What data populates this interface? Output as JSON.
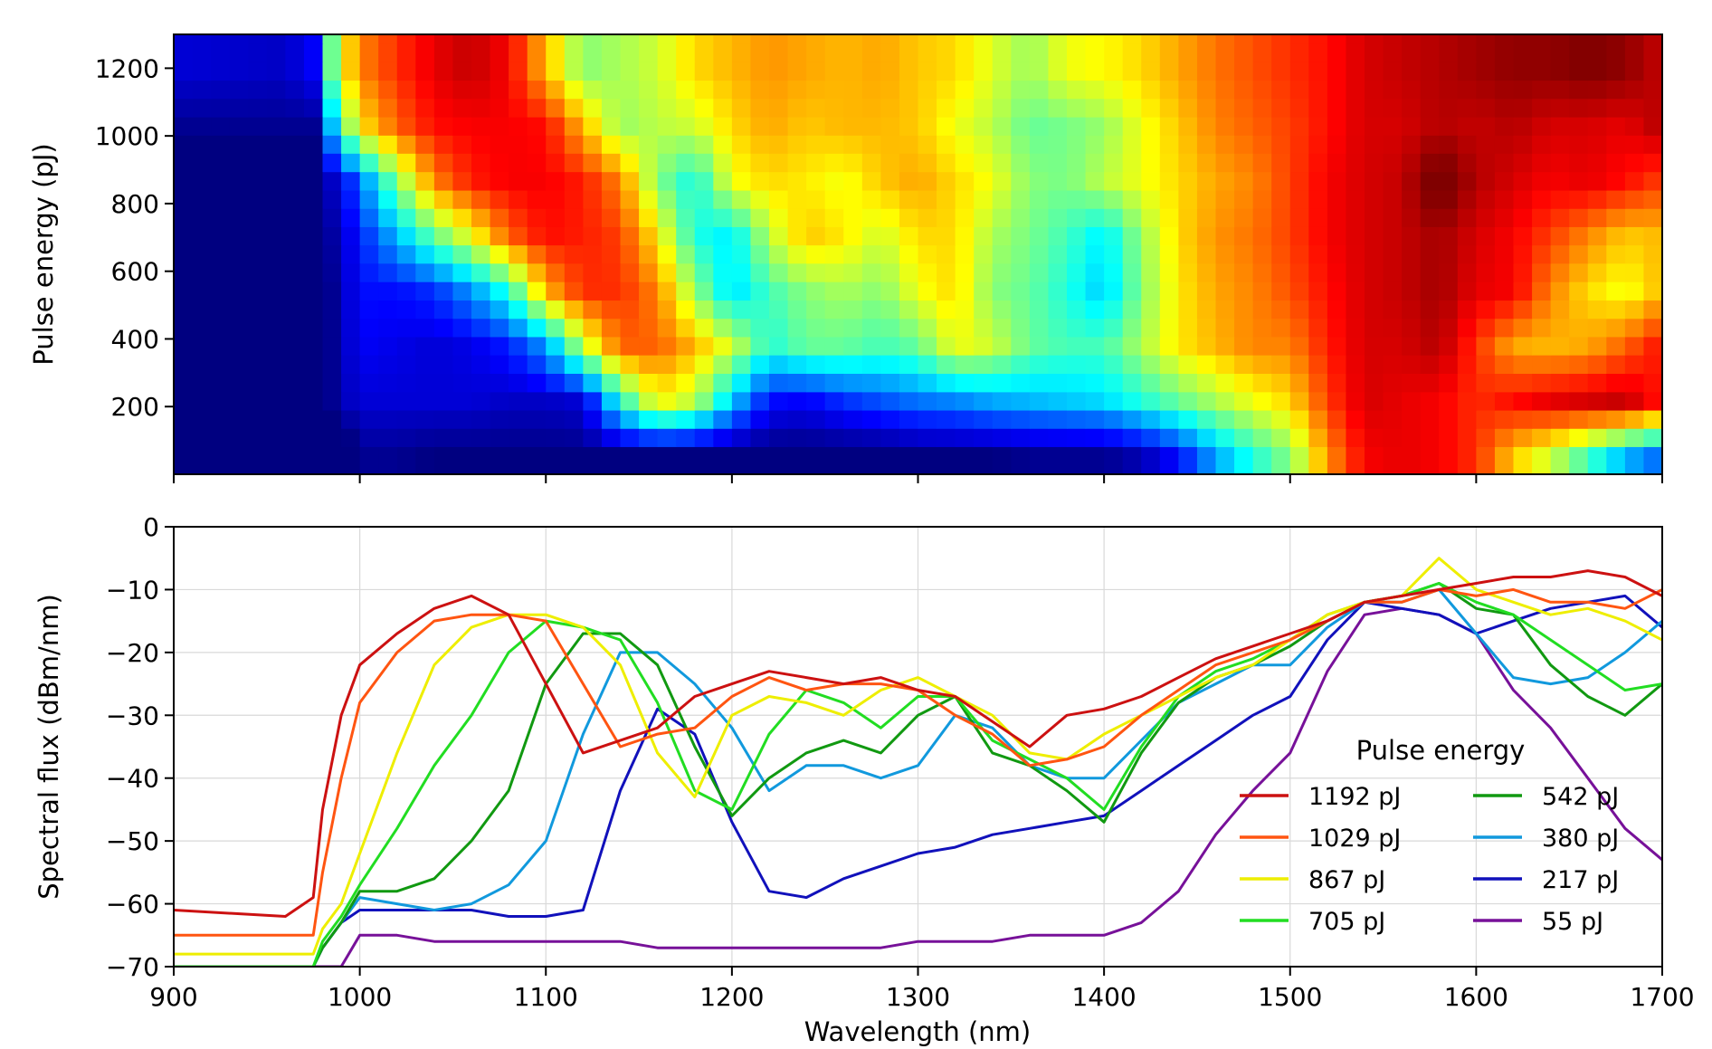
{
  "chart_data": [
    {
      "type": "heatmap",
      "title": "",
      "xlabel": "",
      "ylabel": "Pulse energy (pJ)",
      "xlim": [
        900,
        1700
      ],
      "ylim": [
        0,
        1300
      ],
      "xticks": [
        900,
        1000,
        1100,
        1200,
        1300,
        1400,
        1500,
        1600,
        1700
      ],
      "yticks": [
        200,
        400,
        600,
        800,
        1000,
        1200
      ],
      "ytick_labels": [
        "200",
        "400",
        "600",
        "800",
        "1000",
        "1200"
      ],
      "colormap": "jet",
      "energy_rows": [
        55,
        109,
        163,
        217,
        271,
        326,
        380,
        434,
        488,
        542,
        597,
        651,
        705,
        759,
        813,
        867,
        922,
        976,
        1029,
        1084,
        1138,
        1192,
        1246,
        1300
      ],
      "wavelength_step_nm": 10
    },
    {
      "type": "line",
      "title": "",
      "xlabel": "Wavelength (nm)",
      "ylabel": "Spectral flux (dBm/nm)",
      "xlim": [
        900,
        1700
      ],
      "ylim": [
        -70,
        0
      ],
      "grid": true,
      "xticks": [
        900,
        1000,
        1100,
        1200,
        1300,
        1400,
        1500,
        1600,
        1700
      ],
      "xtick_labels": [
        "900",
        "1000",
        "1100",
        "1200",
        "1300",
        "1400",
        "1500",
        "1600",
        "1700"
      ],
      "yticks": [
        0,
        -10,
        -20,
        -30,
        -40,
        -50,
        -60,
        -70
      ],
      "ytick_labels": [
        "0",
        "−10",
        "−20",
        "−30",
        "−40",
        "−50",
        "−60",
        "−70"
      ],
      "legend": {
        "title": "Pulse energy",
        "placement": "lower-right",
        "columns": 2
      },
      "x": [
        900,
        960,
        975,
        980,
        990,
        1000,
        1020,
        1040,
        1060,
        1080,
        1100,
        1120,
        1140,
        1160,
        1180,
        1200,
        1220,
        1240,
        1260,
        1280,
        1300,
        1320,
        1340,
        1360,
        1380,
        1400,
        1420,
        1440,
        1460,
        1480,
        1500,
        1520,
        1540,
        1560,
        1580,
        1600,
        1620,
        1640,
        1660,
        1680,
        1700
      ],
      "series": [
        {
          "name": "1192 pJ",
          "color": "#cc1111",
          "values": [
            -61,
            -62,
            -59,
            -45,
            -30,
            -22,
            -17,
            -13,
            -11,
            -14,
            -25,
            -36,
            -34,
            -32,
            -27,
            -25,
            -23,
            -24,
            -25,
            -24,
            -26,
            -27,
            -31,
            -35,
            -30,
            -29,
            -27,
            -24,
            -21,
            -19,
            -17,
            -15,
            -12,
            -11,
            -10,
            -9,
            -8,
            -8,
            -7,
            -8,
            -11
          ]
        },
        {
          "name": "1029 pJ",
          "color": "#ff5511",
          "values": [
            -65,
            -65,
            -65,
            -55,
            -40,
            -28,
            -20,
            -15,
            -14,
            -14,
            -15,
            -25,
            -35,
            -33,
            -32,
            -27,
            -24,
            -26,
            -25,
            -25,
            -26,
            -30,
            -33,
            -38,
            -37,
            -35,
            -30,
            -26,
            -22,
            -20,
            -18,
            -15,
            -12,
            -12,
            -10,
            -11,
            -10,
            -12,
            -12,
            -13,
            -10
          ]
        },
        {
          "name": "867 pJ",
          "color": "#eeee00",
          "values": [
            -68,
            -68,
            -68,
            -64,
            -60,
            -52,
            -36,
            -22,
            -16,
            -14,
            -14,
            -16,
            -22,
            -36,
            -43,
            -30,
            -27,
            -28,
            -30,
            -26,
            -24,
            -27,
            -30,
            -36,
            -37,
            -33,
            -30,
            -27,
            -24,
            -22,
            -18,
            -14,
            -12,
            -11,
            -5,
            -10,
            -12,
            -14,
            -13,
            -15,
            -18
          ]
        },
        {
          "name": "705 pJ",
          "color": "#22dd22",
          "values": [
            -70,
            -70,
            -70,
            -66,
            -62,
            -57,
            -48,
            -38,
            -30,
            -20,
            -15,
            -16,
            -18,
            -28,
            -42,
            -45,
            -33,
            -26,
            -28,
            -32,
            -27,
            -27,
            -34,
            -37,
            -40,
            -45,
            -35,
            -27,
            -23,
            -21,
            -18,
            -14,
            -12,
            -11,
            -9,
            -12,
            -14,
            -18,
            -22,
            -26,
            -25
          ]
        },
        {
          "name": "542 pJ",
          "color": "#119911",
          "values": [
            -70,
            -70,
            -70,
            -67,
            -63,
            -58,
            -58,
            -56,
            -50,
            -42,
            -25,
            -17,
            -17,
            -22,
            -35,
            -46,
            -40,
            -36,
            -34,
            -36,
            -30,
            -27,
            -36,
            -38,
            -42,
            -47,
            -36,
            -28,
            -24,
            -22,
            -19,
            -15,
            -12,
            -11,
            -9,
            -13,
            -14,
            -22,
            -27,
            -30,
            -25
          ]
        },
        {
          "name": "380 pJ",
          "color": "#1199dd",
          "values": [
            -70,
            -70,
            -70,
            -67,
            -63,
            -59,
            -60,
            -61,
            -60,
            -57,
            -50,
            -33,
            -20,
            -20,
            -25,
            -32,
            -42,
            -38,
            -38,
            -40,
            -38,
            -30,
            -32,
            -38,
            -40,
            -40,
            -34,
            -28,
            -25,
            -22,
            -22,
            -16,
            -12,
            -12,
            -10,
            -17,
            -24,
            -25,
            -24,
            -20,
            -15
          ]
        },
        {
          "name": "217 pJ",
          "color": "#1111bb",
          "values": [
            -70,
            -70,
            -70,
            -67,
            -63,
            -61,
            -61,
            -61,
            -61,
            -62,
            -62,
            -61,
            -42,
            -29,
            -33,
            -47,
            -58,
            -59,
            -56,
            -54,
            -52,
            -51,
            -49,
            -48,
            -47,
            -46,
            -42,
            -38,
            -34,
            -30,
            -27,
            -18,
            -12,
            -13,
            -14,
            -17,
            -15,
            -13,
            -12,
            -11,
            -16
          ]
        },
        {
          "name": "55 pJ",
          "color": "#771199",
          "values": [
            -70,
            -70,
            -70,
            -70,
            -70,
            -65,
            -65,
            -66,
            -66,
            -66,
            -66,
            -66,
            -66,
            -67,
            -67,
            -67,
            -67,
            -67,
            -67,
            -67,
            -66,
            -66,
            -66,
            -65,
            -65,
            -65,
            -63,
            -58,
            -49,
            -42,
            -36,
            -23,
            -14,
            -13,
            -14,
            -17,
            -26,
            -32,
            -40,
            -48,
            -53
          ]
        }
      ]
    }
  ]
}
